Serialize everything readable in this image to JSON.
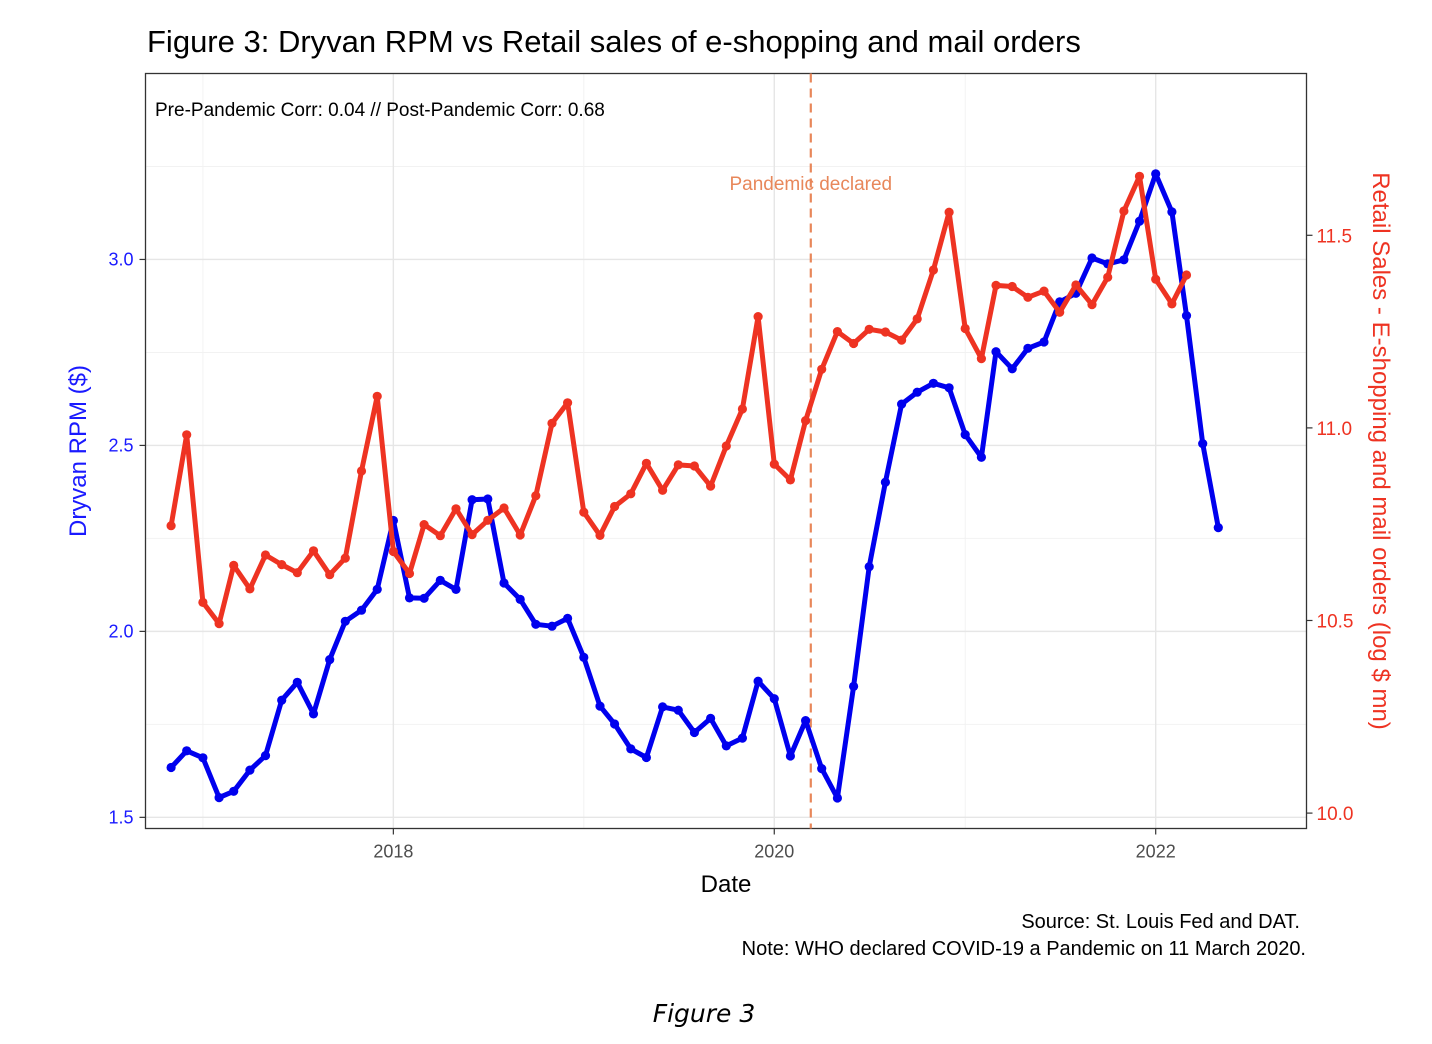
{
  "chart_data": {
    "type": "line",
    "title": "Figure 3: Dryvan RPM vs Retail sales of e-shopping and mail orders",
    "annotation": "Pre-Pandemic Corr: 0.04 // Post-Pandemic Corr: 0.68",
    "xlabel": "Date",
    "ylabel_left": "Dryvan RPM ($)",
    "ylabel_right": "Retail Sales - E-shopping and mail orders (log $ mn)",
    "x_ticks": [
      "2018",
      "2020",
      "2022"
    ],
    "y_left_ticks": [
      "1.5",
      "2.0",
      "2.5",
      "3.0"
    ],
    "y_right_ticks": [
      "10.0",
      "10.5",
      "11.0",
      "11.5"
    ],
    "ylim_left": [
      1.47,
      3.5
    ],
    "ylim_right": [
      9.96,
      11.92
    ],
    "xlim": [
      "2016-09-13",
      "2022-10-17"
    ],
    "grid": true,
    "colors": {
      "left_series": "#0000ee",
      "right_series": "#ee3322",
      "vline": "#e8875a",
      "left_axis_text": "#1a1aff",
      "right_axis_text": "#ee3322"
    },
    "vline": {
      "date": "2020-03-11",
      "label": "Pandemic declared"
    },
    "start_month": "2016-11",
    "series": [
      {
        "name": "Dryvan RPM ($)",
        "axis": "left",
        "values": [
          1.634,
          1.679,
          1.66,
          1.553,
          1.57,
          1.627,
          1.666,
          1.815,
          1.863,
          1.778,
          1.924,
          2.027,
          2.057,
          2.113,
          2.298,
          2.09,
          2.089,
          2.137,
          2.113,
          2.354,
          2.356,
          2.13,
          2.086,
          2.019,
          2.014,
          2.035,
          1.93,
          1.799,
          1.751,
          1.684,
          1.661,
          1.797,
          1.788,
          1.728,
          1.766,
          1.692,
          1.713,
          1.866,
          1.819,
          1.665,
          1.76,
          1.631,
          1.552,
          1.852,
          2.174,
          2.401,
          2.611,
          2.643,
          2.667,
          2.655,
          2.529,
          2.468,
          2.752,
          2.706,
          2.761,
          2.778,
          2.886,
          2.909,
          3.004,
          2.988,
          2.999,
          3.103,
          3.23,
          3.128,
          2.849,
          2.505,
          2.279
        ]
      },
      {
        "name": "Retail Sales - E-shopping and mail orders (log $ mn)",
        "axis": "right",
        "values": [
          10.746,
          10.982,
          10.547,
          10.492,
          10.643,
          10.582,
          10.67,
          10.645,
          10.624,
          10.681,
          10.619,
          10.662,
          10.888,
          11.082,
          10.679,
          10.622,
          10.749,
          10.72,
          10.79,
          10.723,
          10.76,
          10.792,
          10.722,
          10.824,
          11.012,
          11.065,
          10.781,
          10.721,
          10.796,
          10.829,
          10.908,
          10.838,
          10.904,
          10.901,
          10.849,
          10.953,
          11.049,
          11.289,
          10.906,
          10.865,
          11.019,
          11.152,
          11.25,
          11.219,
          11.256,
          11.249,
          11.228,
          11.283,
          11.41,
          11.56,
          11.258,
          11.18,
          11.37,
          11.367,
          11.339,
          11.355,
          11.3,
          11.371,
          11.32,
          11.391,
          11.563,
          11.653,
          11.386,
          11.322,
          11.397
        ]
      }
    ]
  },
  "source_note": "Source: St. Louis Fed and DAT.",
  "pandemic_note": "Note: WHO declared COVID-19 a Pandemic on 11 March 2020.",
  "figure_label": "Figure 3"
}
